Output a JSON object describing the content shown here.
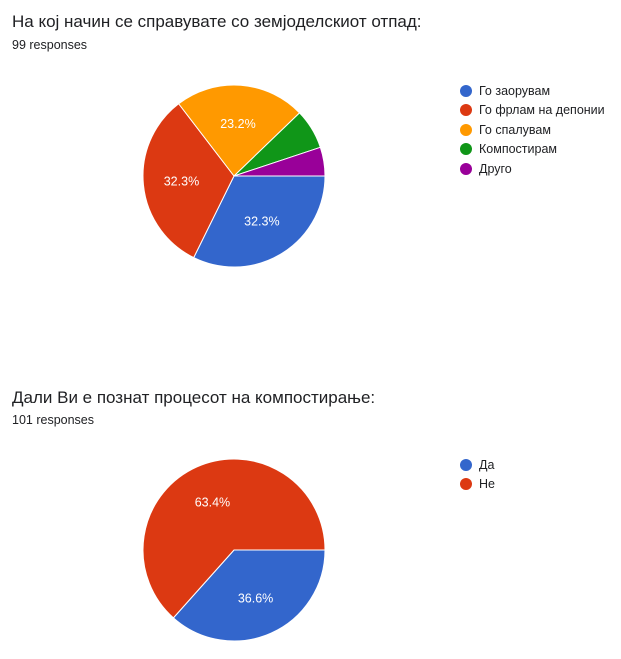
{
  "charts": [
    {
      "title": "На кој начин се справувате со земјоделскиот отпад:",
      "subtitle": "99 responses",
      "legend": [
        {
          "label": "Го заорувам",
          "color": "#3366cc"
        },
        {
          "label": "Го фрлам на депонии",
          "color": "#dc3912"
        },
        {
          "label": "Го спалувам",
          "color": "#ff9900"
        },
        {
          "label": "Компостирам",
          "color": "#109618"
        },
        {
          "label": "Друго",
          "color": "#990099"
        }
      ]
    },
    {
      "title": "Дали Ви е познат процесот на компостирање:",
      "subtitle": "101 responses",
      "legend": [
        {
          "label": "Да",
          "color": "#3366cc"
        },
        {
          "label": "Не",
          "color": "#dc3912"
        }
      ]
    }
  ],
  "chart_data": [
    {
      "type": "pie",
      "title": "На кој начин се справувате со земјоделскиот отпад:",
      "subtitle": "99 responses",
      "legend_position": "right",
      "start_angle_deg": 90,
      "direction": "clockwise",
      "slices": [
        {
          "label": "Го заорувам",
          "value": 32.3,
          "color": "#3366cc",
          "show_label": "32.3%"
        },
        {
          "label": "Го фрлам на депонии",
          "value": 32.3,
          "color": "#dc3912",
          "show_label": "32.3%"
        },
        {
          "label": "Го спалувам",
          "value": 23.2,
          "color": "#ff9900",
          "show_label": "23.2%"
        },
        {
          "label": "Компостирам",
          "value": 7.1,
          "color": "#109618",
          "show_label": ""
        },
        {
          "label": "Друго",
          "value": 5.1,
          "color": "#990099",
          "show_label": ""
        }
      ]
    },
    {
      "type": "pie",
      "title": "Дали Ви е познат процесот на компостирање:",
      "subtitle": "101 responses",
      "legend_position": "right",
      "start_angle_deg": 90,
      "direction": "clockwise",
      "slices": [
        {
          "label": "Да",
          "value": 36.6,
          "color": "#3366cc",
          "show_label": "36.6%"
        },
        {
          "label": "Не",
          "value": 63.4,
          "color": "#dc3912",
          "show_label": "63.4%"
        }
      ]
    }
  ]
}
